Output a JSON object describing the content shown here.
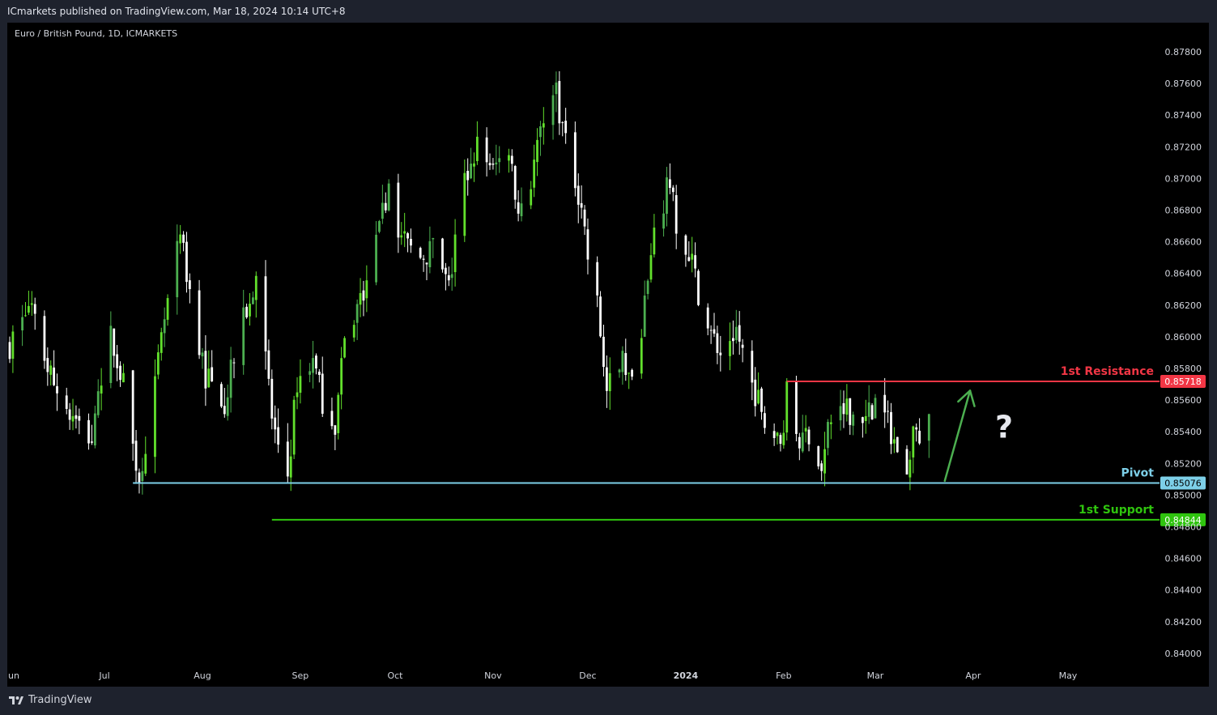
{
  "header": {
    "published": "ICmarkets published on TradingView.com, Mar 18, 2024 10:14 UTC+8"
  },
  "symbol_label": "Euro / British Pound, 1D, ICMARKETS",
  "footer": {
    "brand": "TradingView",
    "brand_icon": "tradingview-logo-icon"
  },
  "colors": {
    "background": "#000000",
    "frame": "#1e222d",
    "up_candle": "#4caf50",
    "up_candle_bright": "#62e02c",
    "down_candle": "#ffffff",
    "resistance": "#f23645",
    "pivot": "#7dcfe8",
    "support": "#2fc40e",
    "arrow": "#4caf50",
    "axis_text": "#d1d4dc"
  },
  "chart_data": {
    "type": "candlestick",
    "title": "Euro / British Pound, 1D, ICMARKETS",
    "y_ticks": [
      "0.87800",
      "0.87600",
      "0.87400",
      "0.87200",
      "0.87000",
      "0.86800",
      "0.86600",
      "0.86400",
      "0.86200",
      "0.86000",
      "0.85800",
      "0.85600",
      "0.85400",
      "0.85200",
      "0.85000",
      "0.84800",
      "0.84600",
      "0.84400",
      "0.84200",
      "0.84000"
    ],
    "x_ticks": [
      "un",
      "Jul",
      "Aug",
      "Sep",
      "Oct",
      "Nov",
      "Dec",
      "2024",
      "Feb",
      "Mar",
      "Apr",
      "May"
    ],
    "x_range": [
      "2023-06-01",
      "2024-05-31"
    ],
    "ylim": [
      0.8395,
      0.8789
    ],
    "close_path": [
      [
        "2023-06-01",
        0.8595
      ],
      [
        "2023-06-07",
        0.862
      ],
      [
        "2023-06-14",
        0.8575
      ],
      [
        "2023-06-20",
        0.855
      ],
      [
        "2023-06-27",
        0.8535
      ],
      [
        "2023-07-03",
        0.86
      ],
      [
        "2023-07-07",
        0.857
      ],
      [
        "2023-07-10",
        0.853
      ],
      [
        "2023-07-12",
        0.8512
      ],
      [
        "2023-07-17",
        0.8568
      ],
      [
        "2023-07-20",
        0.861
      ],
      [
        "2023-07-25",
        0.8662
      ],
      [
        "2023-07-28",
        0.863
      ],
      [
        "2023-08-02",
        0.8575
      ],
      [
        "2023-08-08",
        0.856
      ],
      [
        "2023-08-14",
        0.861
      ],
      [
        "2023-08-18",
        0.864
      ],
      [
        "2023-08-23",
        0.855
      ],
      [
        "2023-08-25",
        0.8525
      ],
      [
        "2023-08-28",
        0.8512
      ],
      [
        "2023-08-31",
        0.8572
      ],
      [
        "2023-09-05",
        0.8585
      ],
      [
        "2023-09-08",
        0.856
      ],
      [
        "2023-09-12",
        0.8545
      ],
      [
        "2023-09-15",
        0.8595
      ],
      [
        "2023-09-21",
        0.863
      ],
      [
        "2023-09-26",
        0.8665
      ],
      [
        "2023-09-29",
        0.87
      ],
      [
        "2023-10-03",
        0.866
      ],
      [
        "2023-10-09",
        0.865
      ],
      [
        "2023-10-13",
        0.8655
      ],
      [
        "2023-10-18",
        0.863
      ],
      [
        "2023-10-23",
        0.87
      ],
      [
        "2023-10-27",
        0.872
      ],
      [
        "2023-11-01",
        0.8705
      ],
      [
        "2023-11-06",
        0.872
      ],
      [
        "2023-11-09",
        0.868
      ],
      [
        "2023-11-13",
        0.87
      ],
      [
        "2023-11-17",
        0.8742
      ],
      [
        "2023-11-21",
        0.8755
      ],
      [
        "2023-11-24",
        0.872
      ],
      [
        "2023-11-29",
        0.8685
      ],
      [
        "2023-12-01",
        0.865
      ],
      [
        "2023-12-04",
        0.862
      ],
      [
        "2023-12-07",
        0.8565
      ],
      [
        "2023-12-12",
        0.8585
      ],
      [
        "2023-12-15",
        0.857
      ],
      [
        "2023-12-19",
        0.862
      ],
      [
        "2023-12-22",
        0.866
      ],
      [
        "2023-12-27",
        0.87
      ],
      [
        "2023-12-29",
        0.8665
      ],
      [
        "2024-01-03",
        0.8645
      ],
      [
        "2024-01-08",
        0.8605
      ],
      [
        "2024-01-12",
        0.859
      ],
      [
        "2024-01-17",
        0.8605
      ],
      [
        "2024-01-22",
        0.857
      ],
      [
        "2024-01-26",
        0.855
      ],
      [
        "2024-01-31",
        0.853
      ],
      [
        "2024-02-02",
        0.8565
      ],
      [
        "2024-02-06",
        0.8535
      ],
      [
        "2024-02-09",
        0.854
      ],
      [
        "2024-02-13",
        0.8515
      ],
      [
        "2024-02-16",
        0.855
      ],
      [
        "2024-02-21",
        0.8555
      ],
      [
        "2024-02-26",
        0.8545
      ],
      [
        "2024-03-01",
        0.856
      ],
      [
        "2024-03-05",
        0.8545
      ],
      [
        "2024-03-08",
        0.853
      ],
      [
        "2024-03-11",
        0.851
      ],
      [
        "2024-03-13",
        0.8545
      ],
      [
        "2024-03-15",
        0.854
      ],
      [
        "2024-03-18",
        0.855
      ]
    ],
    "annotations": [
      {
        "name": "resistance",
        "label": "1st Resistance",
        "value": 0.85718,
        "value_text": "0.85718",
        "start_date": "2024-02-02"
      },
      {
        "name": "pivot",
        "label": "Pivot",
        "value": 0.85076,
        "value_text": "0.85076",
        "start_date": "2023-07-10"
      },
      {
        "name": "support",
        "label": "1st Support",
        "value": 0.84844,
        "value_text": "0.84844",
        "start_date": "2023-08-23"
      }
    ],
    "projection": {
      "from": [
        "2024-03-23",
        0.8509
      ],
      "to": [
        "2024-03-31",
        0.8566
      ]
    },
    "question_mark": "?"
  }
}
